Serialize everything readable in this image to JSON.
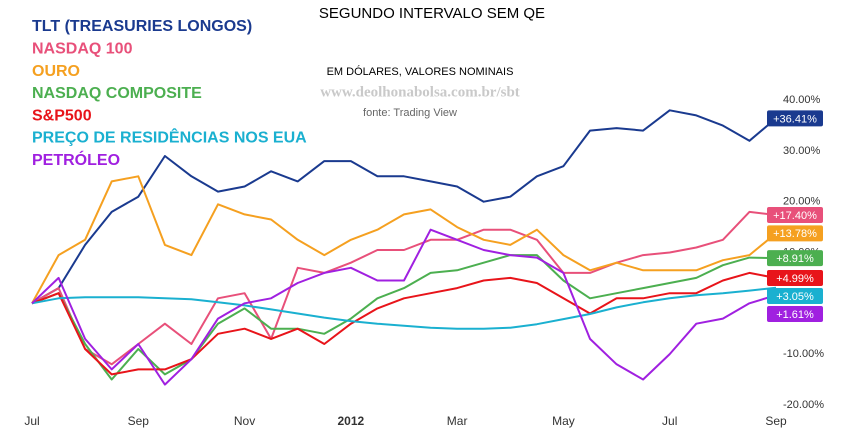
{
  "chart_data": {
    "type": "line",
    "title": "SEGUNDO INTERVALO SEM QE",
    "subtitle": "EM DÓLARES, VALORES NOMINAIS",
    "watermark": "www.deolhonabolsa.com.br/sbt",
    "source": "fonte: Trading View",
    "categories": [
      "Jul",
      null,
      null,
      null,
      "Sep",
      null,
      null,
      null,
      "Nov",
      null,
      null,
      null,
      "2012",
      null,
      null,
      null,
      "Mar",
      null,
      null,
      null,
      "May",
      null,
      null,
      null,
      "Jul",
      null,
      null,
      null,
      "Sep"
    ],
    "ylim": [
      -21,
      42
    ],
    "yticks": [
      {
        "value": 40,
        "label": "40.00%"
      },
      {
        "value": 30,
        "label": "30.00%"
      },
      {
        "value": 20,
        "label": "20.00%"
      },
      {
        "value": 10,
        "label": "10.00%"
      },
      {
        "value": -10,
        "label": "-10.00%"
      },
      {
        "value": -20,
        "label": "-20.00%"
      }
    ],
    "grid": false,
    "series": [
      {
        "name": "TLT (TREASURIES LONGOS)",
        "color": "#1a3a8f",
        "values": [
          0,
          3,
          11.5,
          18,
          21,
          29,
          25,
          22,
          23,
          26,
          24,
          28,
          28,
          25,
          25,
          24,
          23,
          20,
          21,
          25,
          27,
          34,
          34.5,
          34,
          38,
          37,
          35,
          32,
          36.41
        ],
        "value_labels": [
          null,
          null,
          null,
          null,
          null,
          null,
          null,
          null,
          null,
          null,
          null,
          null,
          null,
          null,
          null,
          null,
          null,
          null,
          null,
          null,
          null,
          null,
          null,
          null,
          null,
          null,
          null,
          null,
          "+36.41%"
        ]
      },
      {
        "name": "NASDAQ 100",
        "color": "#e8507a",
        "values": [
          0,
          3,
          -9,
          -12,
          -8,
          -4,
          -8,
          1,
          2,
          -7,
          7,
          6,
          8,
          10.5,
          10.5,
          12.5,
          12.5,
          14.5,
          14.5,
          12.5,
          6,
          6,
          8,
          9.5,
          10,
          11,
          12.5,
          18,
          17.4
        ],
        "value_labels": [
          null,
          null,
          null,
          null,
          null,
          null,
          null,
          null,
          null,
          null,
          null,
          null,
          null,
          null,
          null,
          null,
          null,
          null,
          null,
          null,
          null,
          null,
          null,
          null,
          null,
          null,
          null,
          null,
          "+17.40%"
        ]
      },
      {
        "name": "OURO",
        "color": "#f5a020",
        "values": [
          0,
          9.5,
          12.5,
          24,
          25,
          11.5,
          9.5,
          19.5,
          17.5,
          16.5,
          12.5,
          9.5,
          12.5,
          14.5,
          17.5,
          18.5,
          15,
          12.5,
          11.5,
          14.5,
          9.5,
          6.5,
          8,
          6.5,
          6.5,
          6.5,
          8.5,
          9.5,
          13.78
        ],
        "value_labels": [
          null,
          null,
          null,
          null,
          null,
          null,
          null,
          null,
          null,
          null,
          null,
          null,
          null,
          null,
          null,
          null,
          null,
          null,
          null,
          null,
          null,
          null,
          null,
          null,
          null,
          null,
          null,
          null,
          "+13.78%"
        ]
      },
      {
        "name": "NASDAQ COMPOSITE",
        "color": "#4caf50",
        "values": [
          0,
          2,
          -8,
          -15,
          -9,
          -14,
          -11,
          -4,
          -1,
          -5,
          -5,
          -6,
          -3,
          1,
          3,
          6,
          6.5,
          8,
          9.5,
          9.5,
          4.5,
          1,
          2,
          3,
          4,
          5,
          7.5,
          9,
          8.91
        ],
        "value_labels": [
          null,
          null,
          null,
          null,
          null,
          null,
          null,
          null,
          null,
          null,
          null,
          null,
          null,
          null,
          null,
          null,
          null,
          null,
          null,
          null,
          null,
          null,
          null,
          null,
          null,
          null,
          null,
          null,
          "+8.91%"
        ]
      },
      {
        "name": "S&P500",
        "color": "#e8141a",
        "values": [
          0,
          2,
          -9,
          -14,
          -13,
          -13,
          -11,
          -6,
          -5,
          -7,
          -5,
          -8,
          -4,
          -1,
          1,
          2,
          3,
          4.5,
          5,
          4,
          1,
          -2,
          1,
          1,
          2,
          2,
          4.5,
          6,
          4.99
        ],
        "value_labels": [
          null,
          null,
          null,
          null,
          null,
          null,
          null,
          null,
          null,
          null,
          null,
          null,
          null,
          null,
          null,
          null,
          null,
          null,
          null,
          null,
          null,
          null,
          null,
          null,
          null,
          null,
          null,
          null,
          "+4.99%"
        ]
      },
      {
        "name": "PREÇO DE RESIDÊNCIAS NOS EUA",
        "color": "#1ab0d0",
        "values": [
          0,
          1,
          1.2,
          1.2,
          1.2,
          1,
          0.8,
          0.2,
          -0.4,
          -1.2,
          -2,
          -2.8,
          -3.5,
          -4,
          -4.4,
          -4.8,
          -5,
          -5,
          -4.8,
          -4.1,
          -3.1,
          -2.1,
          -0.8,
          0.2,
          1,
          1.6,
          2,
          2.5,
          3.05
        ],
        "value_labels": [
          null,
          null,
          null,
          null,
          null,
          null,
          null,
          null,
          null,
          null,
          null,
          null,
          null,
          null,
          null,
          null,
          null,
          null,
          null,
          null,
          null,
          null,
          null,
          null,
          null,
          null,
          null,
          null,
          "+3.05%"
        ]
      },
      {
        "name": "PETRÓLEO",
        "color": "#a020e0",
        "values": [
          0,
          5,
          -7,
          -13,
          -8,
          -16,
          -11,
          -3,
          0,
          1,
          4,
          6,
          7,
          4.5,
          4.5,
          14.5,
          12.5,
          10.5,
          9.5,
          9,
          6,
          -7,
          -12,
          -15,
          -10,
          -4,
          -3,
          0,
          1.61
        ],
        "value_labels": [
          null,
          null,
          null,
          null,
          null,
          null,
          null,
          null,
          null,
          null,
          null,
          null,
          null,
          null,
          null,
          null,
          null,
          null,
          null,
          null,
          null,
          null,
          null,
          null,
          null,
          null,
          null,
          null,
          "+1.61%"
        ]
      }
    ]
  }
}
